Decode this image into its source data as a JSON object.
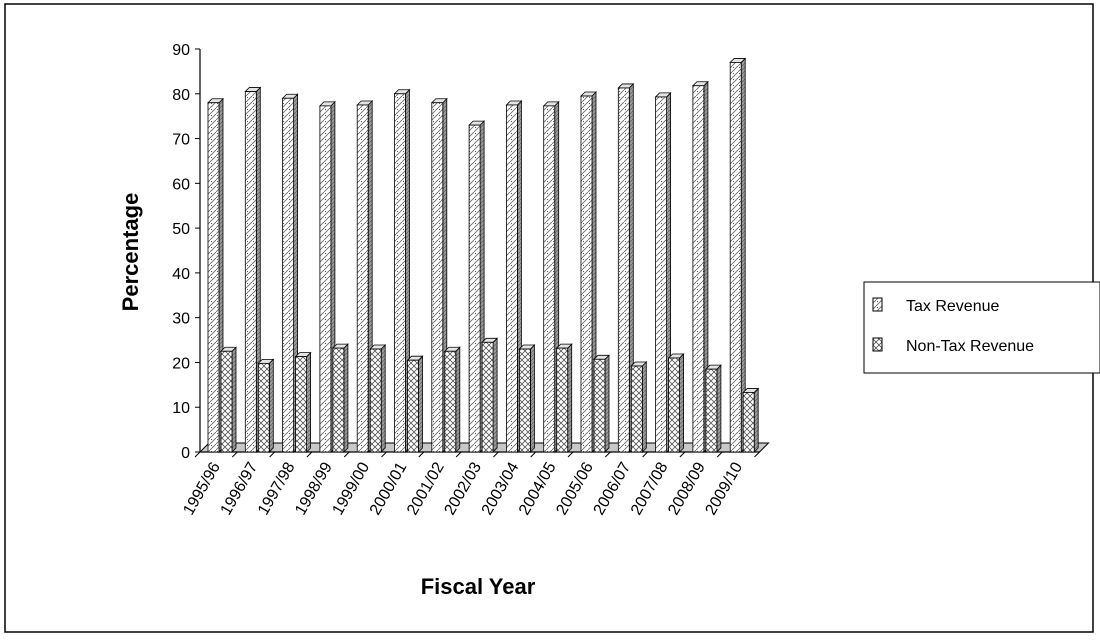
{
  "chart_data": {
    "type": "bar",
    "xlabel": "Fiscal Year",
    "ylabel": "Percentage",
    "ylim": [
      0,
      90
    ],
    "yticks": [
      0,
      10,
      20,
      30,
      40,
      50,
      60,
      70,
      80,
      90
    ],
    "grid": false,
    "legend_position": "right",
    "categories": [
      "1995/96",
      "1996/97",
      "1997/98",
      "1998/99",
      "1999/00",
      "2000/01",
      "2001/02",
      "2002/03",
      "2003/04",
      "2004/05",
      "2005/06",
      "2006/07",
      "2007/08",
      "2008/09",
      "2009/10"
    ],
    "series": [
      {
        "name": "Tax Revenue",
        "values": [
          78,
          80.5,
          79,
          77.3,
          77.5,
          80,
          78,
          73,
          77.5,
          77.3,
          79.5,
          81.3,
          79.3,
          81.8,
          87
        ]
      },
      {
        "name": "Non-Tax Revenue",
        "values": [
          22.5,
          19.8,
          21.3,
          23.2,
          23,
          20.5,
          22.5,
          24.5,
          23,
          23.2,
          20.7,
          19.2,
          21,
          18.5,
          13.3
        ]
      }
    ]
  }
}
